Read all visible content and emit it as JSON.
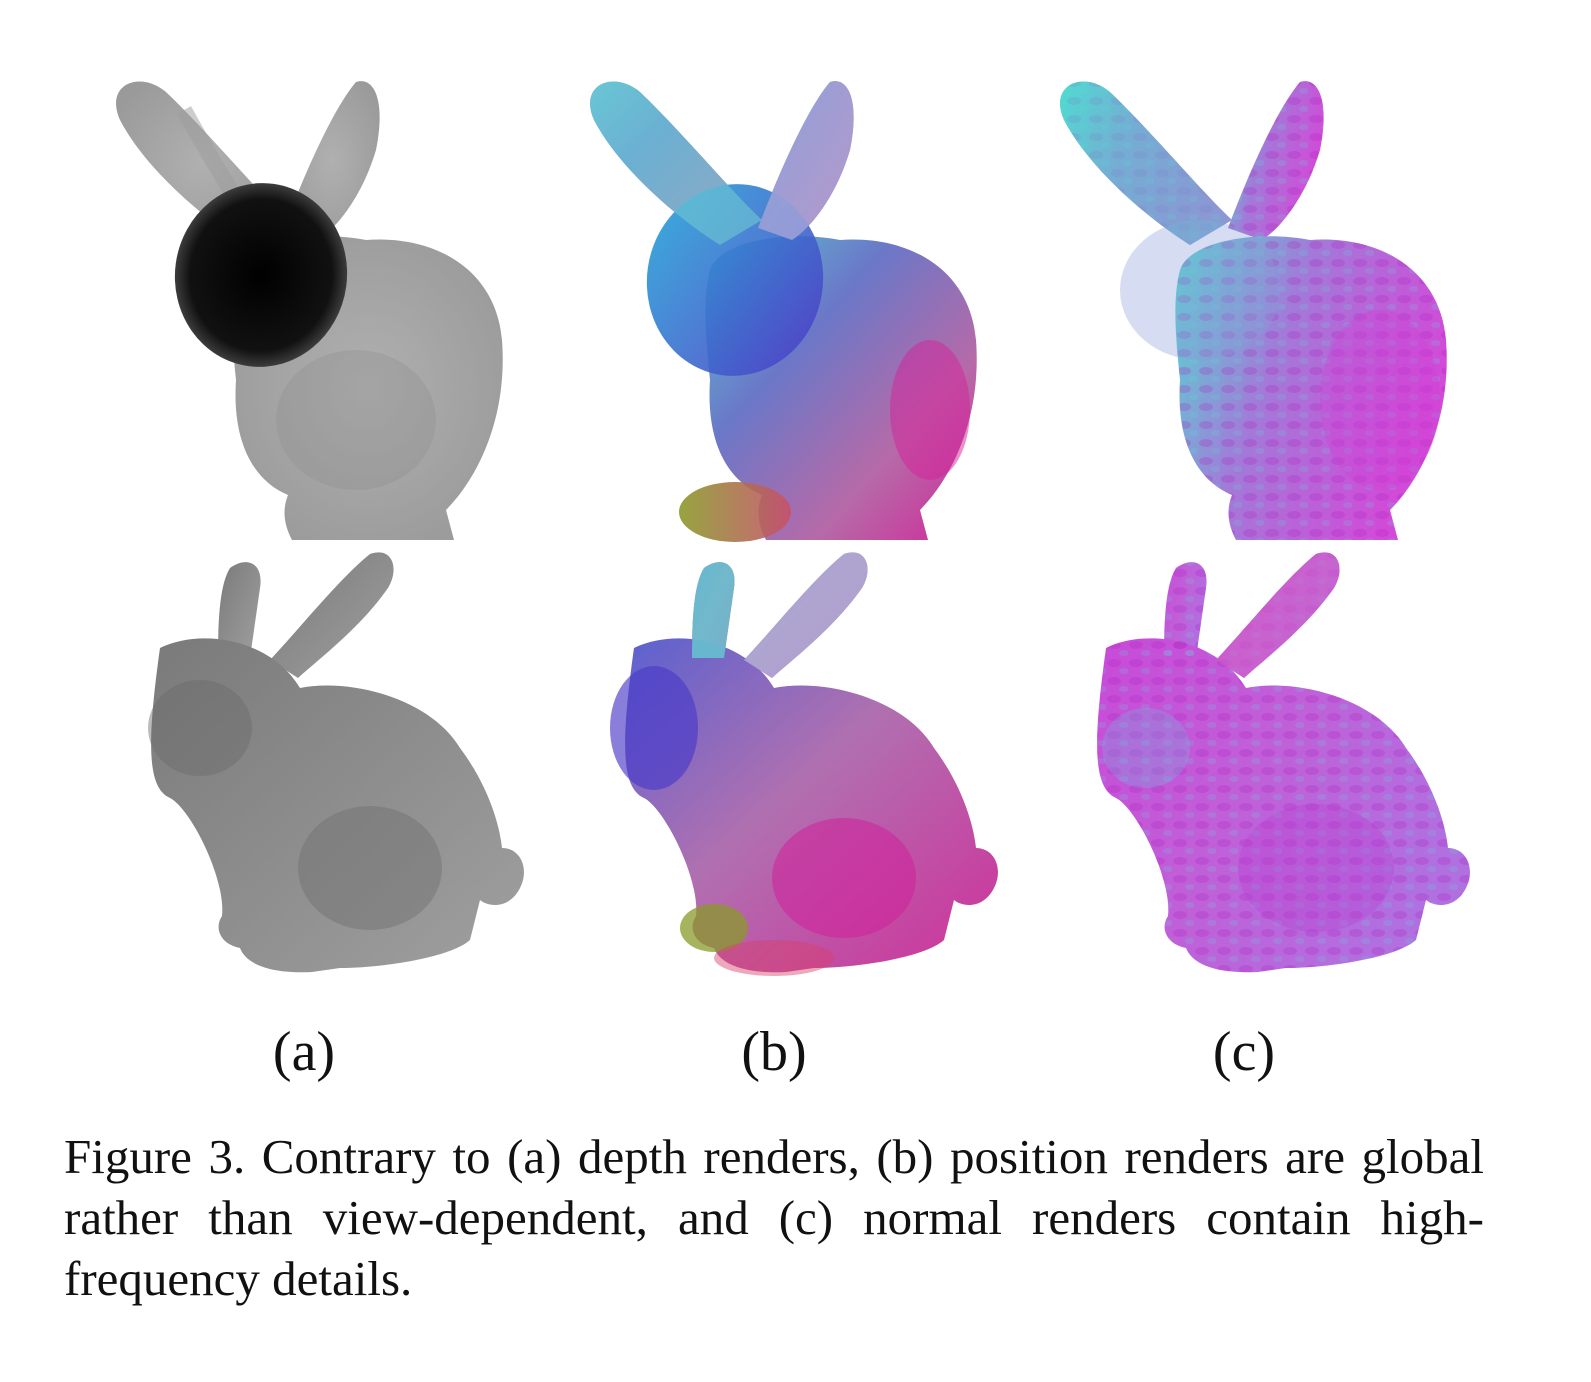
{
  "figure": {
    "subfigure_labels": [
      "(a)",
      "(b)",
      "(c)"
    ],
    "panels": [
      {
        "column": "a",
        "row": "top",
        "render": "depth"
      },
      {
        "column": "a",
        "row": "bottom",
        "render": "depth"
      },
      {
        "column": "b",
        "row": "top",
        "render": "position"
      },
      {
        "column": "b",
        "row": "bottom",
        "render": "position"
      },
      {
        "column": "c",
        "row": "top",
        "render": "normal"
      },
      {
        "column": "c",
        "row": "bottom",
        "render": "normal"
      }
    ],
    "caption": "Figure 3.  Contrary to (a) depth renders, (b) position renders are global rather than view-dependent, and (c) normal renders contain high-frequency details."
  },
  "colors": {
    "depth_light": "#b4b4b4",
    "depth_mid": "#8a8a8a",
    "depth_dark": "#0a0a0a",
    "position_cyan": "#5fc6d2",
    "position_blue": "#4a56c8",
    "position_magenta": "#d0289a",
    "position_olive": "#8a9a2a",
    "normal_cyan": "#4fe0d2",
    "normal_violet": "#a27ad8",
    "normal_magenta": "#d24ad8"
  }
}
